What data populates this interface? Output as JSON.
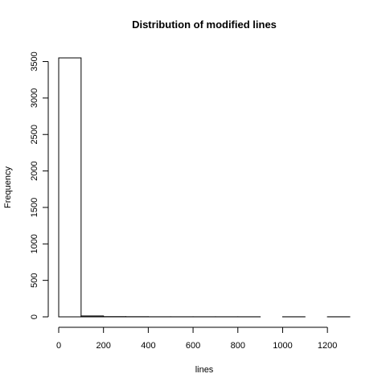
{
  "chart_data": {
    "type": "bar",
    "title": "Distribution of modified lines",
    "xlabel": "lines",
    "ylabel": "Frequency",
    "bin_edges": [
      0,
      100,
      200,
      300,
      400,
      500,
      600,
      700,
      800,
      900,
      1000,
      1100,
      1200,
      1300
    ],
    "values": [
      3550,
      12,
      3,
      2,
      1,
      1,
      1,
      1,
      1,
      0,
      1,
      0,
      1
    ],
    "xlim": [
      0,
      1300
    ],
    "ylim": [
      0,
      3550
    ],
    "x_ticks": [
      0,
      200,
      400,
      600,
      800,
      1000,
      1200
    ],
    "y_ticks": [
      0,
      500,
      1000,
      1500,
      2000,
      2500,
      3000,
      3500
    ],
    "grid": false,
    "legend": "none"
  }
}
